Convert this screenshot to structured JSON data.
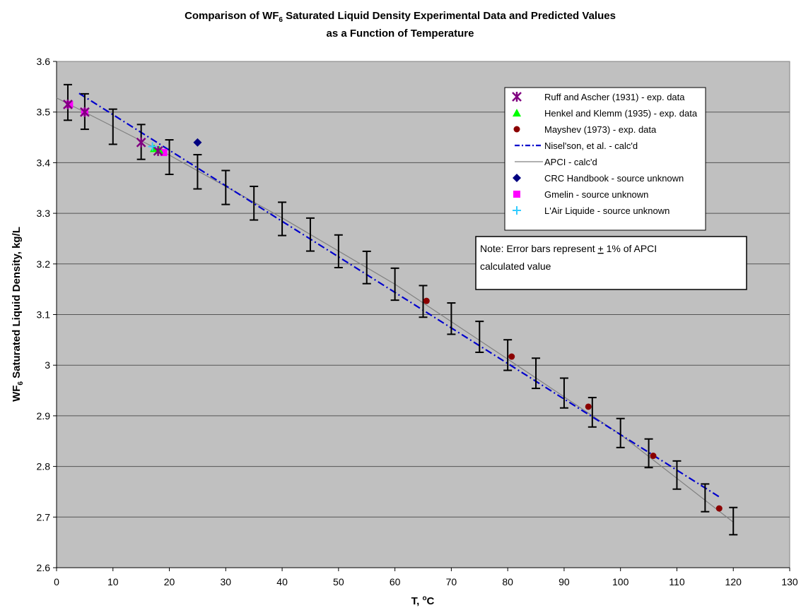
{
  "chart_data": {
    "type": "scatter",
    "title_part1": "Comparison of  WF",
    "title_sub": "6",
    "title_part2": " Saturated Liquid Density Experimental Data and Predicted Values",
    "title_line2": "as a Function of Temperature",
    "xlabel_main": "T, ",
    "xlabel_sup": "o",
    "xlabel_unit": "C",
    "ylabel_pre": "WF",
    "ylabel_sub": "6",
    "ylabel_post": " Saturated Liquid Density, kg/L",
    "xlim": [
      0,
      130
    ],
    "ylim": [
      2.6,
      3.6
    ],
    "x_ticks": [
      "0",
      "10",
      "20",
      "30",
      "40",
      "50",
      "60",
      "70",
      "80",
      "90",
      "100",
      "110",
      "120",
      "130"
    ],
    "y_ticks": [
      "2.6",
      "2.7",
      "2.8",
      "2.9",
      "3",
      "3.1",
      "3.2",
      "3.3",
      "3.4",
      "3.5",
      "3.6"
    ],
    "grid": "horizontal",
    "legend_position": "top-right",
    "note": {
      "line1_pre": "Note:  Error bars represent ",
      "line1_pm": "+",
      "line1_post": " 1% of APCI",
      "line2": "calculated value"
    },
    "colors": {
      "plot_bg": "#c0c0c0",
      "ruff": "#800080",
      "henkel": "#00ff00",
      "mayshev": "#8b0000",
      "nisel": "#0000cc",
      "apci": "#808080",
      "crc": "#000080",
      "gmelin": "#ff00ff",
      "airliquide": "#33ccff",
      "errorbar": "#000000"
    },
    "series": [
      {
        "name": "Ruff and Ascher (1931) - exp. data",
        "marker": "star",
        "color_key": "ruff",
        "x": [
          2,
          5,
          15,
          18
        ],
        "y": [
          3.515,
          3.5,
          3.44,
          3.423
        ]
      },
      {
        "name": "Henkel and Klemm (1935) - exp. data",
        "marker": "triangle",
        "color_key": "henkel",
        "x": [
          17.3,
          18.2
        ],
        "y": [
          3.428,
          3.425
        ]
      },
      {
        "name": "Mayshev (1973) - exp. data",
        "marker": "circle",
        "color_key": "mayshev",
        "x": [
          65.6,
          80.7,
          94.3,
          105.8,
          117.5
        ],
        "y": [
          3.127,
          3.017,
          2.918,
          2.821,
          2.717
        ]
      },
      {
        "name": "Nisel'son, et al. - calc'd",
        "marker": "line-dashdot",
        "color_key": "nisel",
        "x": [
          4,
          117.5
        ],
        "y": [
          3.537,
          2.74
        ]
      },
      {
        "name": "APCI - calc'd",
        "marker": "line",
        "color_key": "apci",
        "x": [
          0,
          20,
          40,
          60,
          80,
          100,
          120
        ],
        "y": [
          3.528,
          3.415,
          3.291,
          3.16,
          3.012,
          2.863,
          2.69
        ]
      },
      {
        "name": "CRC Handbook - source unknown",
        "marker": "diamond",
        "color_key": "crc",
        "x": [
          25
        ],
        "y": [
          3.44
        ]
      },
      {
        "name": "Gmelin - source unknown",
        "marker": "square",
        "color_key": "gmelin",
        "x": [
          2.3,
          5,
          19
        ],
        "y": [
          3.515,
          3.5,
          3.42
        ]
      },
      {
        "name": "L'Air Liquide - source unknown",
        "marker": "plus",
        "color_key": "airliquide",
        "x": [
          17
        ],
        "y": [
          3.432
        ]
      }
    ],
    "error_bars": {
      "description_pct": 1,
      "x": [
        2,
        5,
        10,
        15,
        20,
        25,
        30,
        35,
        40,
        45,
        50,
        55,
        60,
        65,
        70,
        75,
        80,
        85,
        90,
        95,
        100,
        105,
        110,
        115,
        120
      ],
      "y": [
        3.519,
        3.501,
        3.471,
        3.441,
        3.411,
        3.382,
        3.351,
        3.32,
        3.289,
        3.258,
        3.225,
        3.193,
        3.16,
        3.126,
        3.092,
        3.056,
        3.02,
        2.984,
        2.945,
        2.907,
        2.866,
        2.826,
        2.783,
        2.738,
        2.692
      ]
    }
  }
}
